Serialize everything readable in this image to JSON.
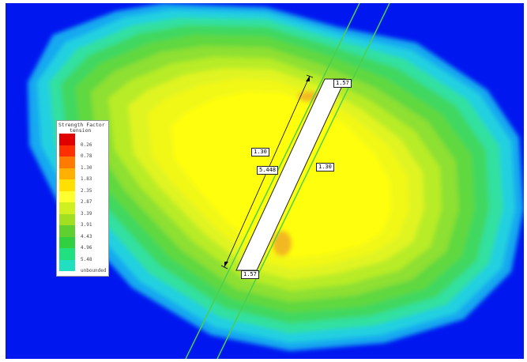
{
  "legend": {
    "title": "Strength Factor",
    "subtitle": "tension",
    "colors": [
      "#e00000",
      "#ff3000",
      "#ff7a00",
      "#ffb000",
      "#ffe000",
      "#ffff30",
      "#d0f020",
      "#a0e020",
      "#60d030",
      "#30d040",
      "#20e080",
      "#20e0c0",
      "#20c0f0",
      "#1080f0",
      "#0040f0",
      "#0017f0"
    ],
    "labels": [
      {
        "text": "0.26",
        "index": 1
      },
      {
        "text": "0.78",
        "index": 2
      },
      {
        "text": "1.30",
        "index": 3
      },
      {
        "text": "1.83",
        "index": 4
      },
      {
        "text": "2.35",
        "index": 5
      },
      {
        "text": "2.87",
        "index": 6
      },
      {
        "text": "3.39",
        "index": 7
      },
      {
        "text": "3.91",
        "index": 8
      },
      {
        "text": "4.43",
        "index": 9
      },
      {
        "text": "4.96",
        "index": 10
      },
      {
        "text": "5.48",
        "index": 11
      },
      {
        "text": "unbounded",
        "index": 12
      }
    ]
  },
  "labels": {
    "top_right": "1.57",
    "bottom_left": "1.57",
    "left_side": "1.30",
    "right_side": "1.30",
    "length": "5.448"
  },
  "colors": {
    "background": "#0017f0",
    "excavation": "#ffffff",
    "joint_lines": "#4ccf4c"
  }
}
